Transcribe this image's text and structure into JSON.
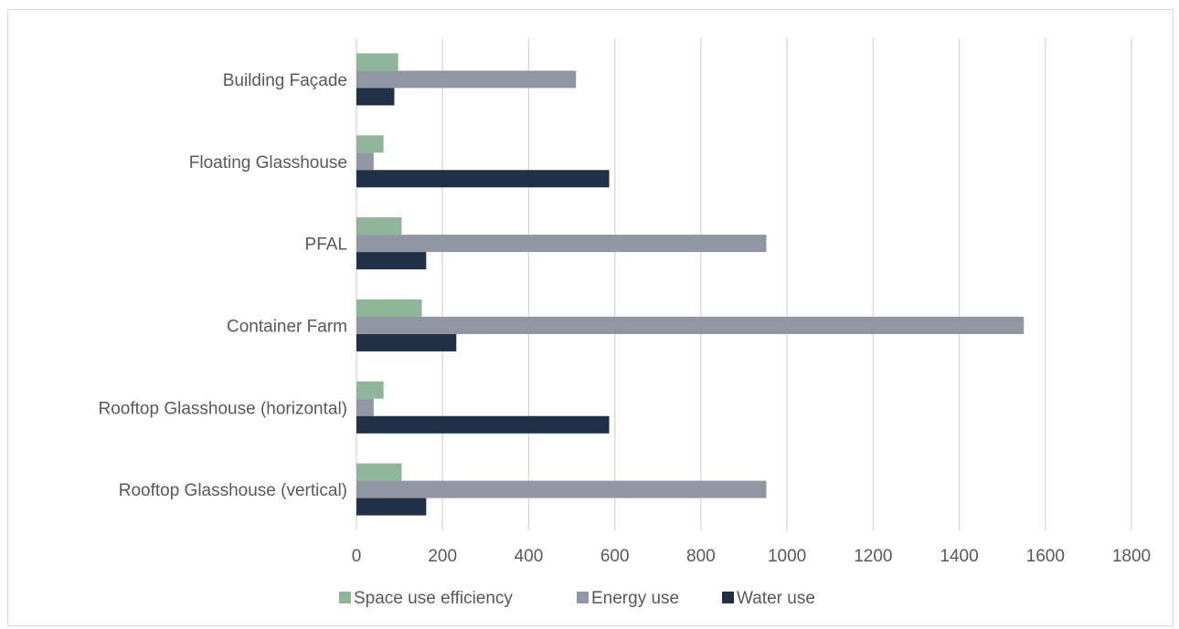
{
  "chart_data": {
    "type": "bar",
    "orientation": "horizontal",
    "title": "",
    "xlabel": "",
    "ylabel": "",
    "categories": [
      "Building Façade",
      "Floating Glasshouse",
      "PFAL",
      "Container Farm",
      "Rooftop Glasshouse (horizontal)",
      "Rooftop Glasshouse (vertical)"
    ],
    "series": [
      {
        "name": "Space use efficiency",
        "color": "#8fb59a",
        "values": [
          97,
          63,
          105,
          152,
          63,
          105
        ]
      },
      {
        "name": "Energy use",
        "color": "#9197a2",
        "values": [
          510,
          40,
          952,
          1550,
          40,
          952
        ]
      },
      {
        "name": "Water use",
        "color": "#203147",
        "values": [
          88,
          587,
          162,
          232,
          587,
          162
        ]
      }
    ],
    "xlim": [
      0,
      1800
    ],
    "xticks": [
      "0",
      "200",
      "400",
      "600",
      "800",
      "1000",
      "1200",
      "1400",
      "1600",
      "1800"
    ],
    "grid": true,
    "legend_position": "bottom",
    "colors": {
      "gridline": "#d9d9d9",
      "text": "#595959",
      "border": "#d9d9d9"
    }
  }
}
